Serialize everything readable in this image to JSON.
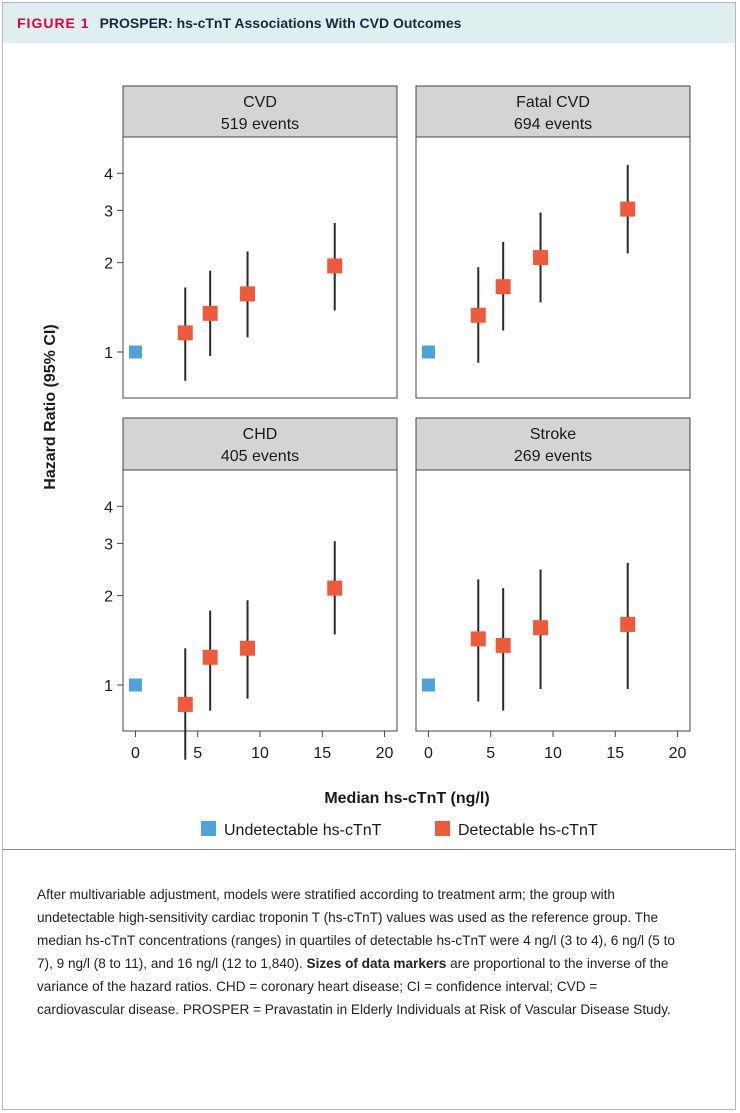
{
  "figure": {
    "label": "FIGURE 1",
    "title": "PROSPER: hs-cTnT Associations With CVD Outcomes"
  },
  "chart_data": {
    "type": "scatter",
    "xlabel": "Median hs-cTnT (ng/l)",
    "ylabel": "Hazard Ratio (95% CI)",
    "x_scale": "linear",
    "y_scale": "log",
    "xlim": [
      -1,
      21
    ],
    "x_ticks": [
      0,
      5,
      10,
      15,
      20
    ],
    "y_ticks": [
      1,
      2,
      3,
      4
    ],
    "legend_position": "bottom",
    "legend": [
      {
        "label": "Undetectable hs-cTnT",
        "color": "#4da3d9"
      },
      {
        "label": "Detectable hs-cTnT",
        "color": "#f05a3c"
      }
    ],
    "panels": [
      {
        "title": "CVD",
        "subtitle": "519 events",
        "ylim": [
          0.7,
          5.3
        ],
        "points": [
          {
            "x": 0,
            "y": 1.0,
            "group": "Undetectable hs-cTnT"
          },
          {
            "x": 4,
            "y": 1.16,
            "lo": 0.8,
            "hi": 1.65,
            "group": "Detectable hs-cTnT"
          },
          {
            "x": 6,
            "y": 1.35,
            "lo": 0.97,
            "hi": 1.88,
            "group": "Detectable hs-cTnT"
          },
          {
            "x": 9,
            "y": 1.57,
            "lo": 1.12,
            "hi": 2.18,
            "group": "Detectable hs-cTnT"
          },
          {
            "x": 16,
            "y": 1.95,
            "lo": 1.38,
            "hi": 2.72,
            "group": "Detectable hs-cTnT"
          }
        ]
      },
      {
        "title": "Fatal CVD",
        "subtitle": "694 events",
        "ylim": [
          0.7,
          5.3
        ],
        "points": [
          {
            "x": 0,
            "y": 1.0,
            "group": "Undetectable hs-cTnT"
          },
          {
            "x": 4,
            "y": 1.33,
            "lo": 0.92,
            "hi": 1.93,
            "group": "Detectable hs-cTnT"
          },
          {
            "x": 6,
            "y": 1.66,
            "lo": 1.18,
            "hi": 2.35,
            "group": "Detectable hs-cTnT"
          },
          {
            "x": 9,
            "y": 2.08,
            "lo": 1.47,
            "hi": 2.95,
            "group": "Detectable hs-cTnT"
          },
          {
            "x": 16,
            "y": 3.03,
            "lo": 2.15,
            "hi": 4.27,
            "group": "Detectable hs-cTnT"
          }
        ]
      },
      {
        "title": "CHD",
        "subtitle": "405 events",
        "ylim": [
          0.7,
          5.3
        ],
        "points": [
          {
            "x": 0,
            "y": 1.0,
            "group": "Undetectable hs-cTnT"
          },
          {
            "x": 4,
            "y": 0.86,
            "lo": 0.56,
            "hi": 1.33,
            "group": "Detectable hs-cTnT"
          },
          {
            "x": 6,
            "y": 1.24,
            "lo": 0.82,
            "hi": 1.78,
            "group": "Detectable hs-cTnT"
          },
          {
            "x": 9,
            "y": 1.33,
            "lo": 0.9,
            "hi": 1.93,
            "group": "Detectable hs-cTnT"
          },
          {
            "x": 16,
            "y": 2.12,
            "lo": 1.48,
            "hi": 3.05,
            "group": "Detectable hs-cTnT"
          }
        ]
      },
      {
        "title": "Stroke",
        "subtitle": "269 events",
        "ylim": [
          0.7,
          5.3
        ],
        "points": [
          {
            "x": 0,
            "y": 1.0,
            "group": "Undetectable hs-cTnT"
          },
          {
            "x": 4,
            "y": 1.43,
            "lo": 0.88,
            "hi": 2.27,
            "group": "Detectable hs-cTnT"
          },
          {
            "x": 6,
            "y": 1.36,
            "lo": 0.82,
            "hi": 2.12,
            "group": "Detectable hs-cTnT"
          },
          {
            "x": 9,
            "y": 1.56,
            "lo": 0.97,
            "hi": 2.45,
            "group": "Detectable hs-cTnT"
          },
          {
            "x": 16,
            "y": 1.6,
            "lo": 0.97,
            "hi": 2.58,
            "group": "Detectable hs-cTnT"
          }
        ]
      }
    ]
  },
  "caption": {
    "part1": "After multivariable adjustment, models were stratified according to treatment arm; the group with undetectable high-sensitivity cardiac troponin T (hs-cTnT) values was used as the reference group. The median hs-cTnT concentrations (ranges) in quartiles of detectable hs-cTnT were 4 ng/l (3 to 4), 6 ng/l (5 to 7), 9 ng/l (8 to 11), and 16 ng/l (12 to 1,840). ",
    "bold": "Sizes of data markers",
    "part2": " are proportional to the inverse of the variance of the hazard ratios. CHD = coronary heart disease; CI = confidence interval; CVD = cardiovascular disease. PROSPER = Pravastatin in Elderly Individuals at Risk of Vascular Disease Study."
  }
}
